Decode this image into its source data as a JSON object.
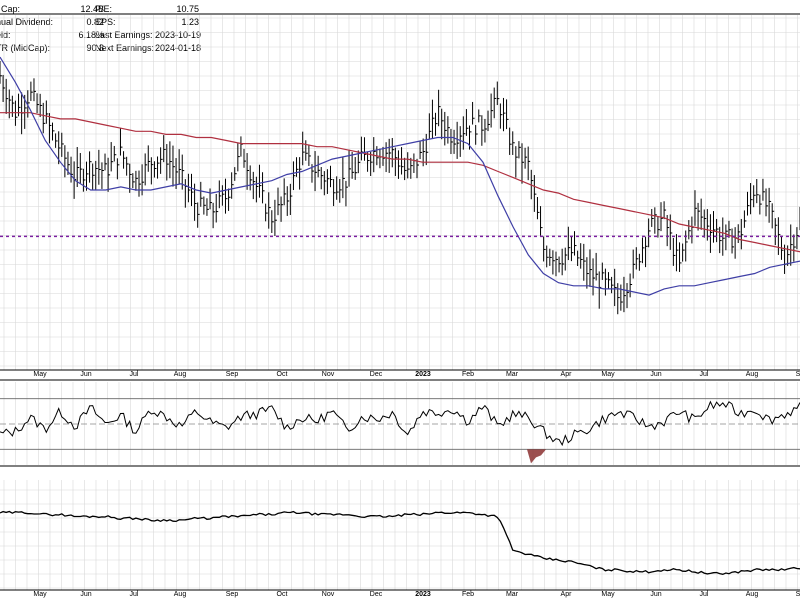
{
  "info_left": [
    {
      "label": "t Cap:",
      "value": "12.4B"
    },
    {
      "label": "nual Dividend:",
      "value": "0.82"
    },
    {
      "label": "eld:",
      "value": "6.18%"
    },
    {
      "label": "TR (MidCap):",
      "value": "90.8"
    }
  ],
  "info_right": [
    {
      "label": "P/E:",
      "value": "10.75"
    },
    {
      "label": "EPS:",
      "value": "1.23"
    },
    {
      "label": "Last Earnings:",
      "value": "2023-10-19"
    },
    {
      "label": "Next Earnings:",
      "value": "2024-01-18"
    }
  ],
  "colors": {
    "price_bars": "#000000",
    "ma_short": "#3f3fa6",
    "ma_long": "#b03040",
    "reference_line": "#7a1fa0",
    "oscillator_fill": "#8b3030",
    "grid": "#d8d8d8"
  },
  "chart_data": [
    {
      "type": "ohlc",
      "panel": "price",
      "x_month_labels": [
        "May",
        "Jun",
        "Jul",
        "Aug",
        "Sep",
        "Oct",
        "Nov",
        "Dec",
        "2023",
        "Feb",
        "Mar",
        "Apr",
        "May",
        "Jun",
        "Jul",
        "Aug",
        "S"
      ],
      "series": [
        {
          "name": "price",
          "style": "ohlc-bars",
          "color": "#000000",
          "close_index": [
            152,
            140,
            146,
            138,
            128,
            119,
            123,
            121,
            127,
            118,
            124,
            126,
            119,
            110,
            108,
            113,
            128,
            116,
            106,
            112,
            126,
            121,
            117,
            118,
            125,
            128,
            127,
            120,
            127,
            140,
            132,
            136,
            136,
            144,
            128,
            123,
            96,
            93,
            95,
            88,
            85,
            80,
            89,
            103,
            106,
            90,
            108,
            104,
            99,
            100,
            116,
            108,
            93,
            104
          ]
        },
        {
          "name": "ma-short",
          "style": "line",
          "color": "#3f3fa6",
          "value_index": [
            158,
            150,
            141,
            131,
            124,
            118,
            115,
            115,
            116,
            115,
            115,
            116,
            117,
            115,
            114,
            115,
            116,
            117,
            118,
            120,
            121,
            123,
            125,
            126,
            127,
            128,
            129,
            130,
            131,
            132,
            132,
            130,
            124,
            113,
            103,
            94,
            88,
            85,
            84,
            84,
            83,
            83,
            82,
            81,
            83,
            84,
            84,
            85,
            86,
            87,
            88,
            90,
            91,
            92
          ]
        },
        {
          "name": "ma-long",
          "style": "line",
          "color": "#b03040",
          "value_index": [
            140,
            140,
            140,
            139,
            138,
            138,
            137,
            136,
            135,
            134,
            134,
            133,
            133,
            132,
            132,
            131,
            130,
            130,
            130,
            130,
            130,
            129,
            129,
            128,
            127,
            126,
            125,
            125,
            124,
            124,
            124,
            124,
            123,
            121,
            119,
            117,
            115,
            114,
            112,
            111,
            110,
            109,
            108,
            107,
            106,
            104,
            103,
            102,
            101,
            99,
            98,
            97,
            96,
            95
          ]
        }
      ],
      "reference_level_index": 100,
      "grid": true
    },
    {
      "type": "line",
      "panel": "oscillator",
      "series": [
        {
          "name": "oscillator",
          "color": "#000000",
          "values": [
            42,
            44,
            55,
            46,
            60,
            48,
            63,
            50,
            57,
            44,
            62,
            56,
            48,
            60,
            51,
            47,
            56,
            58,
            62,
            47,
            55,
            52,
            60,
            45,
            56,
            54,
            59,
            42,
            60,
            59,
            62,
            52,
            64,
            48,
            58,
            55,
            44,
            35,
            41,
            46,
            54,
            59,
            55,
            48,
            52,
            60,
            53,
            64,
            66,
            58,
            62,
            53,
            58,
            63
          ]
        }
      ],
      "upper_level": 70,
      "mid_level": 50,
      "lower_level": 30,
      "grid": true
    },
    {
      "type": "line",
      "panel": "relative-strength",
      "x_month_labels": [
        "May",
        "Jun",
        "Jul",
        "Aug",
        "Sep",
        "Oct",
        "Nov",
        "Dec",
        "2023",
        "Feb",
        "Mar",
        "Apr",
        "May",
        "Jun",
        "Jul",
        "Aug",
        "S"
      ],
      "series": [
        {
          "name": "relative-strength",
          "color": "#000000",
          "values": [
            100,
            100,
            100,
            99,
            99,
            98,
            98,
            98,
            97,
            97,
            96,
            96,
            96,
            97,
            97,
            98,
            98,
            99,
            99,
            100,
            100,
            99,
            99,
            99,
            98,
            98,
            98,
            99,
            99,
            100,
            100,
            100,
            99,
            98,
            80,
            78,
            76,
            75,
            74,
            72,
            70,
            70,
            69,
            69,
            70,
            70,
            69,
            68,
            68,
            69,
            70,
            70,
            70,
            71
          ]
        }
      ],
      "grid": true
    }
  ]
}
